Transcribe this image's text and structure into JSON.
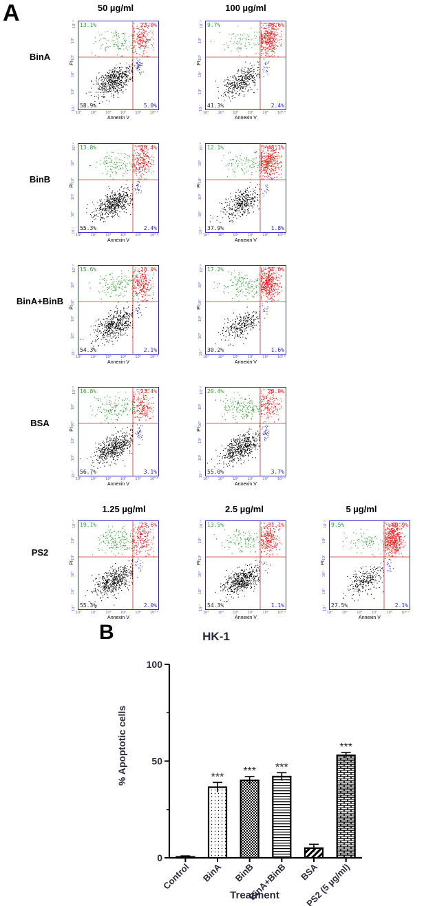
{
  "figure": {
    "panel_a": "A",
    "panel_b": "B",
    "top_headers": [
      "50 µg/ml",
      "100 µg/ml"
    ],
    "ps2_headers": [
      "1.25 µg/ml",
      "2.5 µg/ml",
      "5 µg/ml"
    ],
    "row_labels": [
      "BinA",
      "BinB",
      "BinA+BinB",
      "BSA",
      "PS2"
    ],
    "x_axis_label": "Annexin V",
    "y_axis_label": "PI",
    "colors": {
      "live": "#000000",
      "early": "#2424cc",
      "late": "#e8211d",
      "necrotic": "#2e9a2e",
      "frame": "#2222cc"
    }
  },
  "flow_plots": [
    {
      "row": "BinA",
      "dose": "50 µg/ml",
      "q_ul": "13.1%",
      "q_ur": "23.0%",
      "q_ll": "58.9%",
      "q_lr": "5.0%"
    },
    {
      "row": "BinA",
      "dose": "100 µg/ml",
      "q_ul": "9.7%",
      "q_ur": "46.6%",
      "q_ll": "41.3%",
      "q_lr": "2.4%"
    },
    {
      "row": "BinB",
      "dose": "50 µg/ml",
      "q_ul": "13.8%",
      "q_ur": "28.4%",
      "q_ll": "55.3%",
      "q_lr": "2.4%"
    },
    {
      "row": "BinB",
      "dose": "100 µg/ml",
      "q_ul": "12.1%",
      "q_ur": "48.1%",
      "q_ll": "37.9%",
      "q_lr": "1.8%"
    },
    {
      "row": "BinA+BinB",
      "dose": "50 µg/ml",
      "q_ul": "15.6%",
      "q_ur": "28.0%",
      "q_ll": "54.3%",
      "q_lr": "2.1%"
    },
    {
      "row": "BinA+BinB",
      "dose": "100 µg/ml",
      "q_ul": "17.2%",
      "q_ur": "51.0%",
      "q_ll": "30.2%",
      "q_lr": "1.6%"
    },
    {
      "row": "BSA",
      "dose": "50 µg/ml",
      "q_ul": "16.8%",
      "q_ur": "23.4%",
      "q_ll": "56.7%",
      "q_lr": "3.1%"
    },
    {
      "row": "BSA",
      "dose": "100 µg/ml",
      "q_ul": "20.4%",
      "q_ur": "20.9%",
      "q_ll": "55.0%",
      "q_lr": "3.7%"
    },
    {
      "row": "PS2",
      "dose": "1.25 µg/ml",
      "q_ul": "19.1%",
      "q_ur": "23.6%",
      "q_ll": "55.3%",
      "q_lr": "2.0%"
    },
    {
      "row": "PS2",
      "dose": "2.5 µg/ml",
      "q_ul": "13.5%",
      "q_ur": "31.1%",
      "q_ll": "54.3%",
      "q_lr": "1.1%"
    },
    {
      "row": "PS2",
      "dose": "5 µg/ml",
      "q_ul": "9.5%",
      "q_ur": "60.9%",
      "q_ll": "27.5%",
      "q_lr": "2.1%"
    }
  ],
  "flow_ticks": {
    "x": [
      "10²",
      "10³",
      "10⁴",
      "10⁵",
      "10⁶",
      "10⁶·⁸"
    ],
    "y": [
      "10·⁷",
      "10³",
      "10⁴",
      "10⁵",
      "10⁶",
      "10⁷·²"
    ]
  },
  "chart_data": {
    "type": "bar",
    "title": "HK-1",
    "xlabel": "Treatment",
    "ylabel": "% Apoptotic cells",
    "ylim": [
      0,
      100
    ],
    "yticks": [
      "0",
      "50",
      "100"
    ],
    "categories": [
      "Control",
      "BinA",
      "BinB",
      "BinA+BinB",
      "BSA",
      "PS2 (5 µg/ml)"
    ],
    "values": [
      0.5,
      36.5,
      40,
      42,
      5,
      53
    ],
    "errors": [
      0.5,
      2.5,
      2,
      2,
      2,
      1.5
    ],
    "significance": [
      "",
      "***",
      "***",
      "***",
      "",
      "***"
    ],
    "patterns": [
      "none",
      "dots",
      "checker",
      "hlines",
      "diagonal",
      "bricks"
    ]
  }
}
